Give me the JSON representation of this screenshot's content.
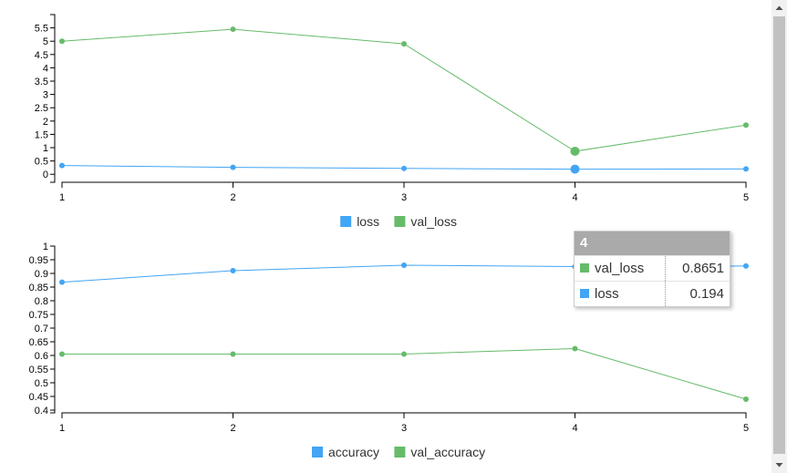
{
  "chart_data": [
    {
      "type": "line",
      "x": [
        1,
        2,
        3,
        4,
        5
      ],
      "series": [
        {
          "name": "loss",
          "values": [
            0.33,
            0.26,
            0.22,
            0.194,
            0.2
          ],
          "color": "#42a5f5"
        },
        {
          "name": "val_loss",
          "values": [
            5.0,
            5.45,
            4.9,
            0.8651,
            1.85
          ],
          "color": "#66bb6a"
        }
      ],
      "y_ticks": [
        "0",
        "0.5",
        "1",
        "1.5",
        "2",
        "2.5",
        "3",
        "3.5",
        "4",
        "4.5",
        "5",
        "5.5"
      ],
      "x_ticks": [
        "1",
        "2",
        "3",
        "4",
        "5"
      ],
      "ylim": [
        -0.3,
        6.0
      ],
      "highlight_index": 3,
      "legend_position": "bottom-center",
      "grid": false
    },
    {
      "type": "line",
      "x": [
        1,
        2,
        3,
        4,
        5
      ],
      "series": [
        {
          "name": "accuracy",
          "values": [
            0.868,
            0.91,
            0.93,
            0.925,
            0.927
          ],
          "color": "#42a5f5"
        },
        {
          "name": "val_accuracy",
          "values": [
            0.605,
            0.605,
            0.605,
            0.625,
            0.44
          ],
          "color": "#66bb6a"
        }
      ],
      "y_ticks": [
        "0.4",
        "0.45",
        "0.5",
        "0.55",
        "0.6",
        "0.65",
        "0.7",
        "0.75",
        "0.8",
        "0.85",
        "0.9",
        "0.95",
        "1"
      ],
      "x_ticks": [
        "1",
        "2",
        "3",
        "4",
        "5"
      ],
      "ylim": [
        0.39,
        1.0
      ],
      "legend_position": "bottom-center",
      "grid": false
    }
  ],
  "tooltip": {
    "title": "4",
    "rows": [
      {
        "name": "val_loss",
        "value": "0.8651",
        "color": "#66bb6a"
      },
      {
        "name": "loss",
        "value": "0.194",
        "color": "#42a5f5"
      }
    ]
  }
}
